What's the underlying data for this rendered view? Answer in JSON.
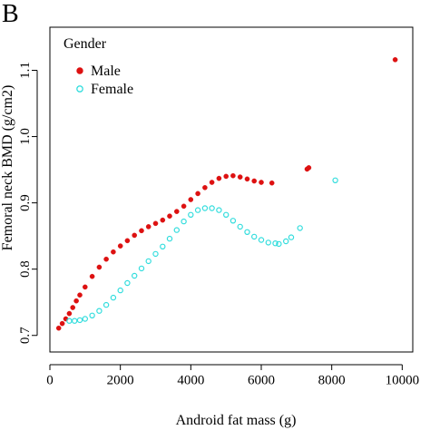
{
  "panel_label": "B",
  "chart_data": {
    "type": "scatter",
    "xlabel": "Android fat mass (g)",
    "ylabel": "Femoral neck BMD (g/cm2)",
    "xlim": [
      0,
      10300
    ],
    "ylim": [
      0.675,
      1.165
    ],
    "xticks": [
      0,
      2000,
      4000,
      6000,
      8000,
      10000
    ],
    "yticks": [
      0.7,
      0.8,
      0.9,
      1.0,
      1.1
    ],
    "ytick_labels": [
      "0.7",
      "0.8",
      "0.9",
      "1.0",
      "1.1"
    ],
    "grid": false,
    "legend": {
      "title": "Gender",
      "placement": "top-left",
      "entries": [
        {
          "label": "Male",
          "series": 0
        },
        {
          "label": "Female",
          "series": 1
        }
      ]
    },
    "series": [
      {
        "name": "Male",
        "color": "#dd1111",
        "marker": "filled-circle",
        "x": [
          250,
          350,
          450,
          550,
          650,
          750,
          850,
          1000,
          1200,
          1400,
          1600,
          1800,
          2000,
          2200,
          2400,
          2600,
          2800,
          3000,
          3200,
          3400,
          3600,
          3800,
          4000,
          4200,
          4400,
          4600,
          4800,
          5000,
          5200,
          5400,
          5600,
          5800,
          6000,
          6300,
          7300,
          7350,
          9800
        ],
        "y": [
          0.711,
          0.718,
          0.725,
          0.733,
          0.742,
          0.752,
          0.761,
          0.773,
          0.789,
          0.803,
          0.815,
          0.826,
          0.835,
          0.843,
          0.851,
          0.858,
          0.864,
          0.869,
          0.874,
          0.88,
          0.887,
          0.895,
          0.905,
          0.914,
          0.923,
          0.931,
          0.937,
          0.94,
          0.941,
          0.939,
          0.936,
          0.933,
          0.931,
          0.93,
          0.951,
          0.953,
          1.116
        ]
      },
      {
        "name": "Female",
        "color": "#33dddd",
        "marker": "open-circle",
        "x": [
          550,
          700,
          850,
          1000,
          1200,
          1400,
          1600,
          1800,
          2000,
          2200,
          2400,
          2600,
          2800,
          3000,
          3200,
          3400,
          3600,
          3800,
          4000,
          4200,
          4400,
          4600,
          4800,
          5000,
          5200,
          5400,
          5600,
          5800,
          6000,
          6200,
          6400,
          6500,
          6700,
          6850,
          7100,
          8100
        ],
        "y": [
          0.722,
          0.722,
          0.723,
          0.725,
          0.73,
          0.737,
          0.746,
          0.757,
          0.768,
          0.779,
          0.79,
          0.801,
          0.812,
          0.823,
          0.834,
          0.846,
          0.859,
          0.872,
          0.882,
          0.889,
          0.892,
          0.892,
          0.889,
          0.882,
          0.873,
          0.864,
          0.856,
          0.849,
          0.844,
          0.84,
          0.839,
          0.838,
          0.842,
          0.848,
          0.862,
          0.934
        ]
      }
    ]
  }
}
